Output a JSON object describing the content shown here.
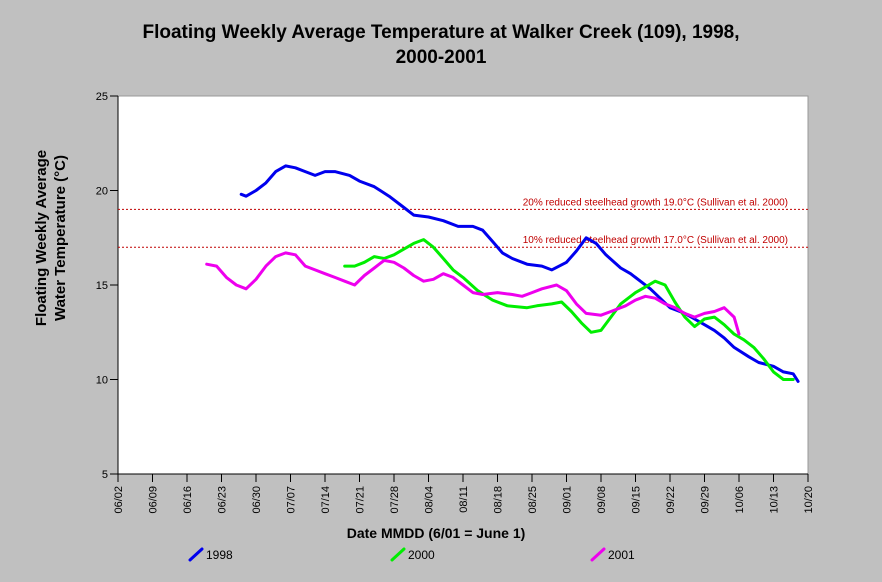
{
  "chart_data": {
    "type": "line",
    "title": "Floating Weekly Average Temperature at Walker Creek (109), 1998, 2000-2001",
    "title_lines": [
      "Floating Weekly Average Temperature at Walker Creek (109), 1998,",
      "2000-2001"
    ],
    "ylabel_lines": [
      "Floating Weekly Average",
      "Water Temperature (°C)"
    ],
    "xlabel": "Date MMDD (6/01 = June 1)",
    "x_ticks": [
      "06/02",
      "06/09",
      "06/16",
      "06/23",
      "06/30",
      "07/07",
      "07/14",
      "07/21",
      "07/28",
      "08/04",
      "08/11",
      "08/18",
      "08/25",
      "09/01",
      "09/08",
      "09/15",
      "09/22",
      "09/29",
      "10/06",
      "10/13",
      "10/20"
    ],
    "x_range_days": "06/02 - 10/20",
    "y_ticks": [
      5,
      10,
      15,
      20,
      25
    ],
    "ylim": [
      5,
      25
    ],
    "grid": false,
    "legend_position": "bottom",
    "reference_lines": [
      {
        "y": 19.0,
        "label": "20% reduced steelhead growth 19.0°C (Sullivan et al. 2000)",
        "color": "#c00000"
      },
      {
        "y": 17.0,
        "label": "10% reduced steelhead growth 17.0°C (Sullivan et al. 2000)",
        "color": "#c00000"
      }
    ],
    "series": [
      {
        "name": "1998",
        "color": "#0000ee",
        "points": [
          [
            "06/27",
            19.8
          ],
          [
            "06/28",
            19.7
          ],
          [
            "06/30",
            20.0
          ],
          [
            "07/02",
            20.4
          ],
          [
            "07/04",
            21.0
          ],
          [
            "07/06",
            21.3
          ],
          [
            "07/08",
            21.2
          ],
          [
            "07/10",
            21.0
          ],
          [
            "07/12",
            20.8
          ],
          [
            "07/14",
            21.0
          ],
          [
            "07/16",
            21.0
          ],
          [
            "07/19",
            20.8
          ],
          [
            "07/21",
            20.5
          ],
          [
            "07/24",
            20.2
          ],
          [
            "07/27",
            19.7
          ],
          [
            "07/30",
            19.1
          ],
          [
            "08/01",
            18.7
          ],
          [
            "08/04",
            18.6
          ],
          [
            "08/07",
            18.4
          ],
          [
            "08/10",
            18.1
          ],
          [
            "08/13",
            18.1
          ],
          [
            "08/15",
            17.9
          ],
          [
            "08/17",
            17.3
          ],
          [
            "08/19",
            16.7
          ],
          [
            "08/21",
            16.4
          ],
          [
            "08/24",
            16.1
          ],
          [
            "08/27",
            16.0
          ],
          [
            "08/29",
            15.8
          ],
          [
            "09/01",
            16.2
          ],
          [
            "09/03",
            16.8
          ],
          [
            "09/05",
            17.5
          ],
          [
            "09/07",
            17.2
          ],
          [
            "09/09",
            16.6
          ],
          [
            "09/12",
            15.9
          ],
          [
            "09/14",
            15.6
          ],
          [
            "09/16",
            15.2
          ],
          [
            "09/18",
            14.8
          ],
          [
            "09/20",
            14.3
          ],
          [
            "09/22",
            13.8
          ],
          [
            "09/25",
            13.5
          ],
          [
            "09/27",
            13.2
          ],
          [
            "09/29",
            12.9
          ],
          [
            "10/01",
            12.6
          ],
          [
            "10/03",
            12.2
          ],
          [
            "10/05",
            11.7
          ],
          [
            "10/08",
            11.2
          ],
          [
            "10/10",
            10.9
          ],
          [
            "10/13",
            10.7
          ],
          [
            "10/15",
            10.4
          ],
          [
            "10/17",
            10.3
          ],
          [
            "10/18",
            9.9
          ]
        ]
      },
      {
        "name": "2000",
        "color": "#00ee00",
        "points": [
          [
            "07/18",
            16.0
          ],
          [
            "07/20",
            16.0
          ],
          [
            "07/22",
            16.2
          ],
          [
            "07/24",
            16.5
          ],
          [
            "07/26",
            16.4
          ],
          [
            "07/28",
            16.6
          ],
          [
            "07/30",
            16.9
          ],
          [
            "08/01",
            17.2
          ],
          [
            "08/03",
            17.4
          ],
          [
            "08/05",
            17.0
          ],
          [
            "08/07",
            16.4
          ],
          [
            "08/09",
            15.8
          ],
          [
            "08/11",
            15.4
          ],
          [
            "08/14",
            14.7
          ],
          [
            "08/17",
            14.2
          ],
          [
            "08/20",
            13.9
          ],
          [
            "08/24",
            13.8
          ],
          [
            "08/26",
            13.9
          ],
          [
            "08/29",
            14.0
          ],
          [
            "08/31",
            14.1
          ],
          [
            "09/02",
            13.6
          ],
          [
            "09/04",
            13.0
          ],
          [
            "09/06",
            12.5
          ],
          [
            "09/08",
            12.6
          ],
          [
            "09/10",
            13.3
          ],
          [
            "09/12",
            14.0
          ],
          [
            "09/15",
            14.6
          ],
          [
            "09/17",
            14.9
          ],
          [
            "09/19",
            15.2
          ],
          [
            "09/21",
            15.0
          ],
          [
            "09/23",
            14.1
          ],
          [
            "09/25",
            13.3
          ],
          [
            "09/27",
            12.8
          ],
          [
            "09/29",
            13.2
          ],
          [
            "10/01",
            13.3
          ],
          [
            "10/03",
            12.9
          ],
          [
            "10/05",
            12.4
          ],
          [
            "10/07",
            12.1
          ],
          [
            "10/09",
            11.7
          ],
          [
            "10/11",
            11.1
          ],
          [
            "10/13",
            10.4
          ],
          [
            "10/15",
            10.0
          ],
          [
            "10/17",
            10.0
          ]
        ]
      },
      {
        "name": "2001",
        "color": "#ee00ee",
        "points": [
          [
            "06/20",
            16.1
          ],
          [
            "06/22",
            16.0
          ],
          [
            "06/24",
            15.4
          ],
          [
            "06/26",
            15.0
          ],
          [
            "06/28",
            14.8
          ],
          [
            "06/30",
            15.3
          ],
          [
            "07/02",
            16.0
          ],
          [
            "07/04",
            16.5
          ],
          [
            "07/06",
            16.7
          ],
          [
            "07/08",
            16.6
          ],
          [
            "07/10",
            16.0
          ],
          [
            "07/12",
            15.8
          ],
          [
            "07/14",
            15.6
          ],
          [
            "07/16",
            15.4
          ],
          [
            "07/18",
            15.2
          ],
          [
            "07/20",
            15.0
          ],
          [
            "07/22",
            15.5
          ],
          [
            "07/24",
            15.9
          ],
          [
            "07/26",
            16.3
          ],
          [
            "07/28",
            16.2
          ],
          [
            "07/30",
            15.9
          ],
          [
            "08/01",
            15.5
          ],
          [
            "08/03",
            15.2
          ],
          [
            "08/05",
            15.3
          ],
          [
            "08/07",
            15.6
          ],
          [
            "08/09",
            15.4
          ],
          [
            "08/11",
            15.0
          ],
          [
            "08/13",
            14.6
          ],
          [
            "08/15",
            14.5
          ],
          [
            "08/18",
            14.6
          ],
          [
            "08/21",
            14.5
          ],
          [
            "08/23",
            14.4
          ],
          [
            "08/25",
            14.6
          ],
          [
            "08/27",
            14.8
          ],
          [
            "08/30",
            15.0
          ],
          [
            "09/01",
            14.7
          ],
          [
            "09/03",
            14.0
          ],
          [
            "09/05",
            13.5
          ],
          [
            "09/08",
            13.4
          ],
          [
            "09/10",
            13.6
          ],
          [
            "09/13",
            13.9
          ],
          [
            "09/15",
            14.2
          ],
          [
            "09/17",
            14.4
          ],
          [
            "09/19",
            14.3
          ],
          [
            "09/21",
            14.0
          ],
          [
            "09/23",
            13.8
          ],
          [
            "09/25",
            13.5
          ],
          [
            "09/27",
            13.3
          ],
          [
            "09/29",
            13.5
          ],
          [
            "10/01",
            13.6
          ],
          [
            "10/03",
            13.8
          ],
          [
            "10/05",
            13.3
          ],
          [
            "10/06",
            12.4
          ]
        ]
      }
    ]
  }
}
